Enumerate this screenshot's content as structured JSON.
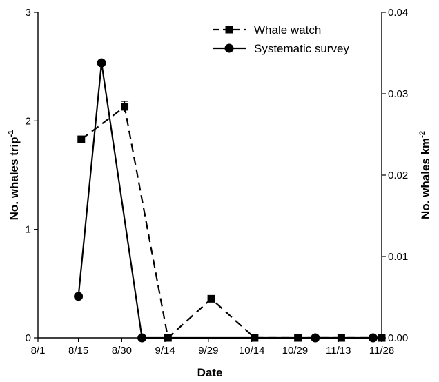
{
  "chart_data": {
    "type": "line",
    "xlabel": "Date",
    "ylabel_left": "No. whales trip",
    "ylabel_left_superscript": "-1",
    "ylabel_right": "No. whales km",
    "ylabel_right_superscript": "-2",
    "x_tick_labels": [
      "8/1",
      "8/15",
      "8/30",
      "9/14",
      "9/29",
      "10/14",
      "10/29",
      "11/13",
      "11/28"
    ],
    "x_tick_positions": [
      0,
      14,
      29,
      44,
      59,
      74,
      89,
      104,
      119
    ],
    "xlim": [
      0,
      119
    ],
    "ylim_left": [
      0,
      3
    ],
    "y_ticks_left": [
      0,
      1,
      2,
      3
    ],
    "y_tick_labels_left": [
      "0",
      "1",
      "2",
      "3"
    ],
    "ylim_right": [
      0,
      0.04
    ],
    "y_ticks_right": [
      0,
      0.01,
      0.02,
      0.03,
      0.04
    ],
    "y_tick_labels_right": [
      "0.00",
      "0.01",
      "0.02",
      "0.03",
      "0.04"
    ],
    "legend_position": "top-right",
    "series": [
      {
        "name": "Whale watch",
        "axis": "left",
        "line_style": "dashed",
        "marker": "square",
        "color": "#000000",
        "x": [
          15,
          30,
          45,
          60,
          75,
          90,
          105,
          119
        ],
        "y": [
          1.83,
          2.13,
          0.0,
          0.36,
          0.0,
          0.0,
          0.0,
          0.0
        ],
        "error": [
          0,
          0.05,
          0,
          0,
          0,
          0,
          0,
          0
        ]
      },
      {
        "name": "Systematic survey",
        "axis": "right",
        "line_style": "solid",
        "marker": "circle",
        "color": "#000000",
        "x": [
          14,
          22,
          36,
          96,
          116
        ],
        "y": [
          0.0051,
          0.0338,
          0.0,
          0.0,
          0.0
        ]
      }
    ]
  }
}
